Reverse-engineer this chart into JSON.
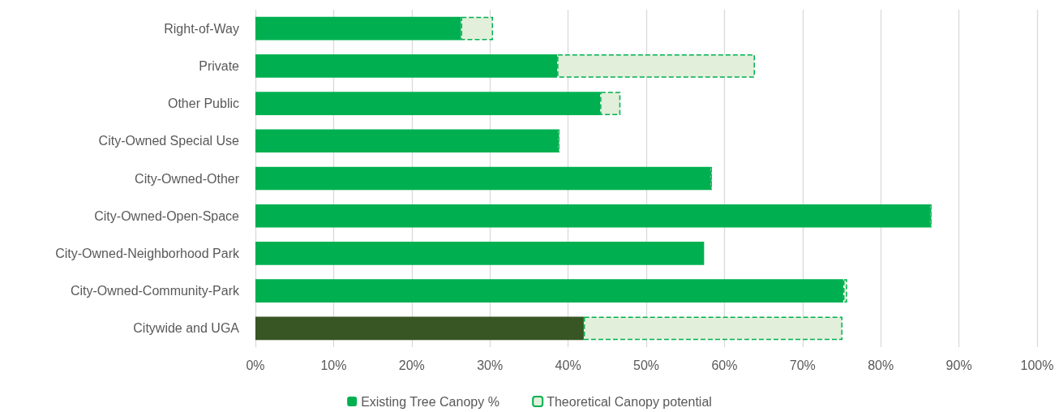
{
  "chart_data": {
    "type": "bar",
    "orientation": "horizontal",
    "stacked": true,
    "categories": [
      "Right-of-Way",
      "Private",
      "Other Public",
      "City-Owned Special Use",
      "City-Owned-Other",
      "City-Owned-Open-Space",
      "City-Owned-Neighborhood Park",
      "City-Owned-Community-Park",
      "Citywide and UGA"
    ],
    "series": [
      {
        "name": "Existing Tree Canopy %",
        "color": "#00b050",
        "colors": [
          "#00b050",
          "#00b050",
          "#00b050",
          "#00b050",
          "#00b050",
          "#00b050",
          "#00b050",
          "#00b050",
          "#375623"
        ],
        "values": [
          26.3,
          38.6,
          44.1,
          38.7,
          58.2,
          86.3,
          57.4,
          75.2,
          42.0
        ]
      },
      {
        "name": "Theoretical Canopy potential",
        "color": "#e2efda",
        "line_style": "dashed",
        "values": [
          4.1,
          25.3,
          2.6,
          0.2,
          0.2,
          0.2,
          null,
          0.5,
          33.1
        ]
      }
    ],
    "xlim": [
      0,
      100
    ],
    "xticks": [
      {
        "value": 0,
        "label": "0%"
      },
      {
        "value": 10,
        "label": "10%"
      },
      {
        "value": 20,
        "label": "20%"
      },
      {
        "value": 30,
        "label": "30%"
      },
      {
        "value": 40,
        "label": "40%"
      },
      {
        "value": 50,
        "label": "50%"
      },
      {
        "value": 60,
        "label": "60%"
      },
      {
        "value": 70,
        "label": "70%"
      },
      {
        "value": 80,
        "label": "80%"
      },
      {
        "value": 90,
        "label": "90%"
      },
      {
        "value": 100,
        "label": "100%"
      }
    ],
    "grid": "x",
    "legend": "bottom"
  }
}
